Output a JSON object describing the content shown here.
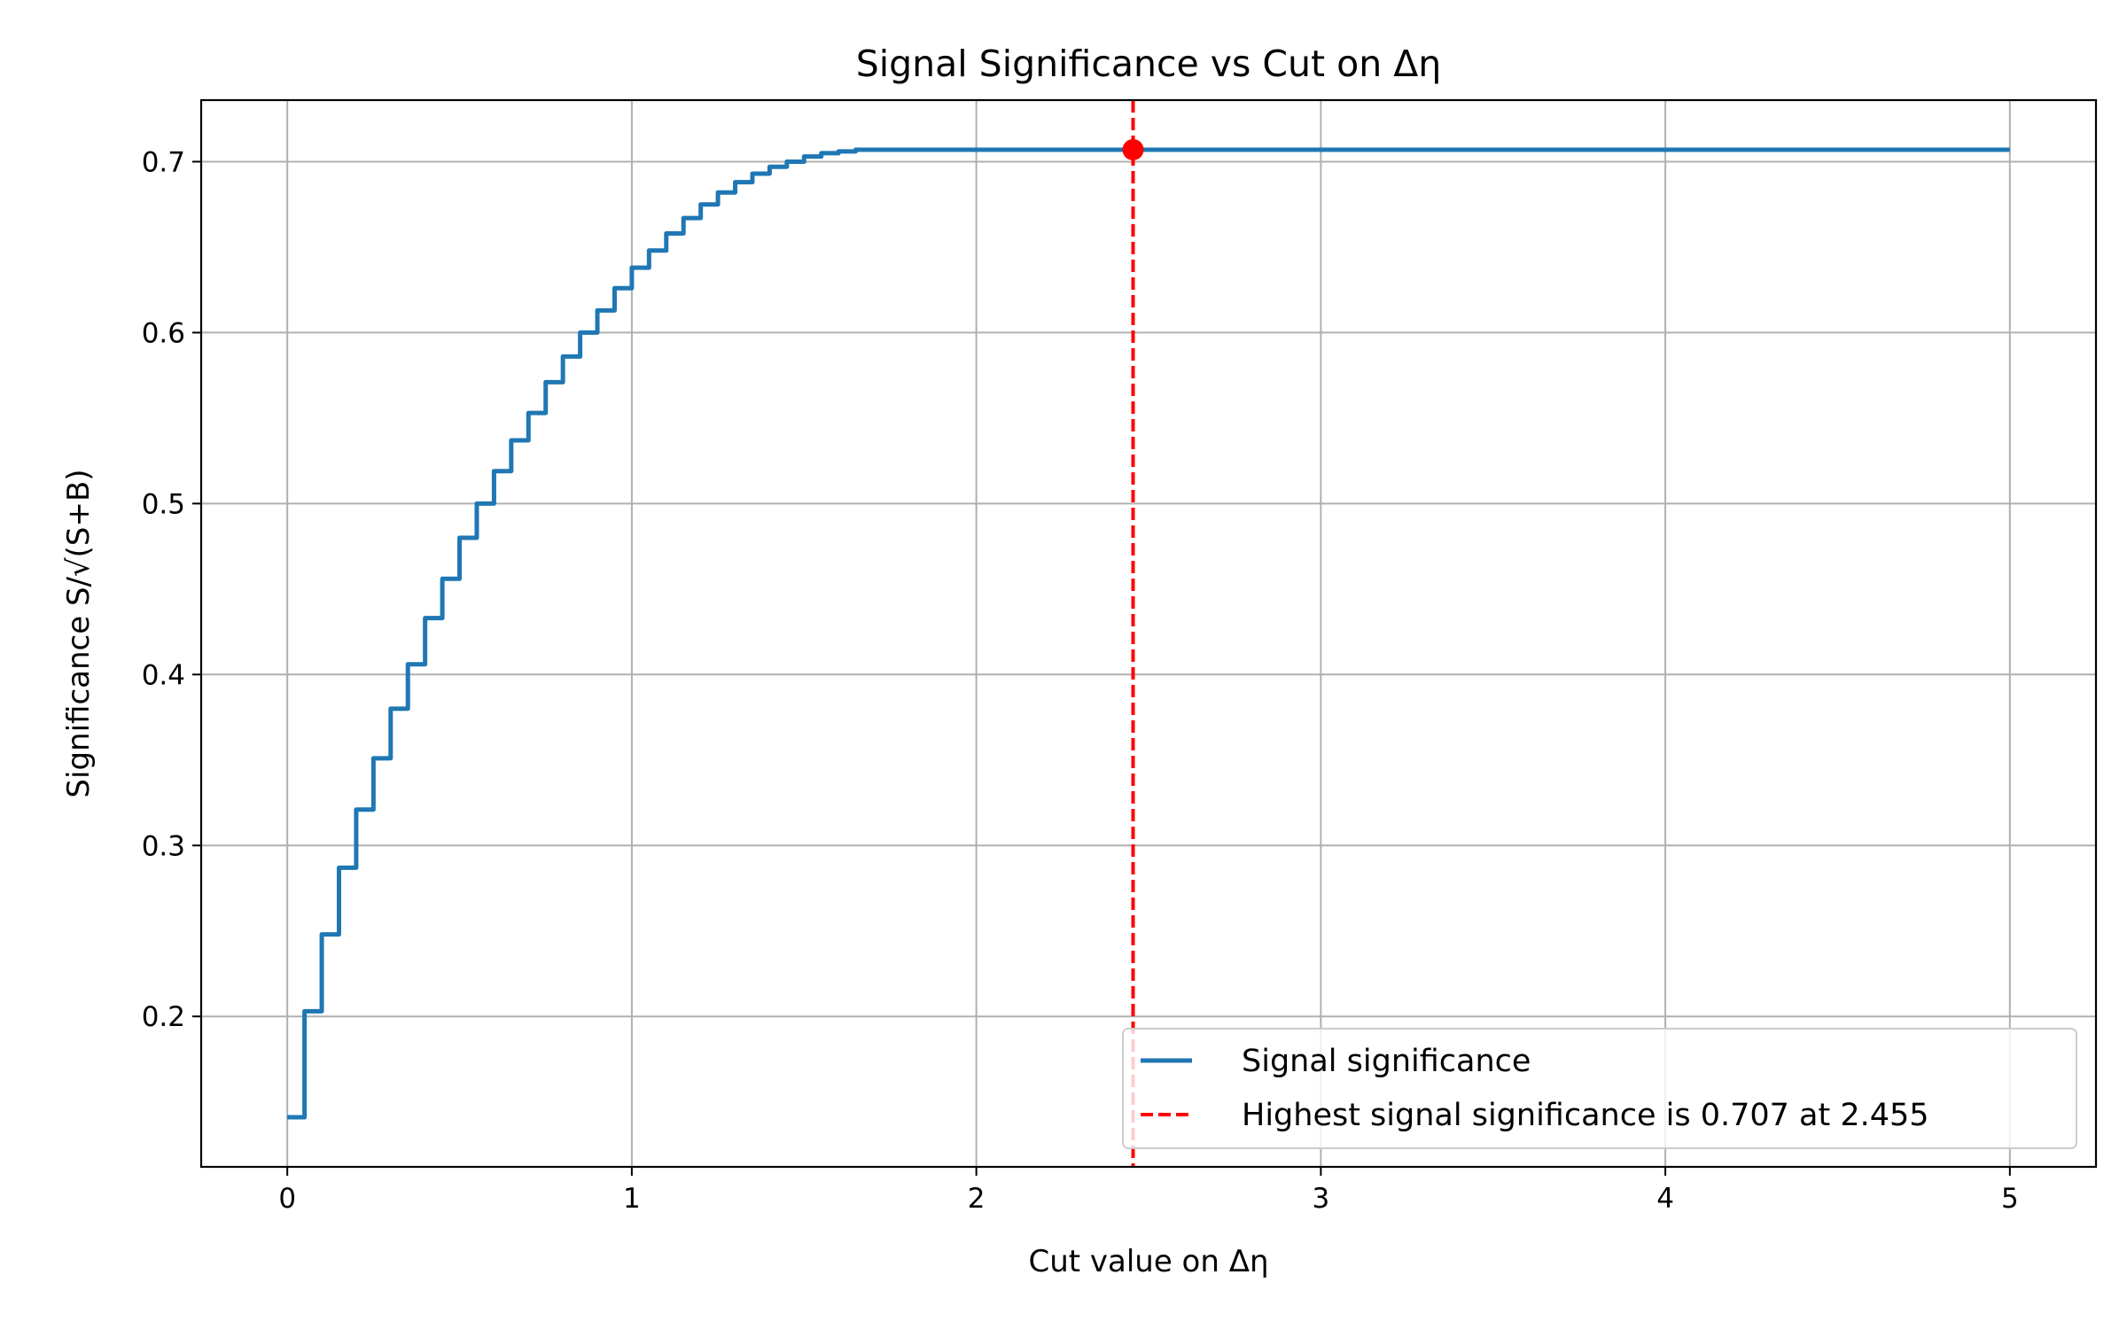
{
  "chart_data": {
    "type": "line",
    "title": "Signal Significance vs Cut on Δη",
    "xlabel": "Cut value on Δη",
    "ylabel": "Significance S/√(S+B)",
    "xlim": [
      -0.25,
      5.25
    ],
    "ylim": [
      0.112,
      0.736
    ],
    "x_ticks": [
      0,
      1,
      2,
      3,
      4,
      5
    ],
    "x_tick_labels": [
      "0",
      "1",
      "2",
      "3",
      "4",
      "5"
    ],
    "y_ticks": [
      0.2,
      0.3,
      0.4,
      0.5,
      0.6,
      0.7
    ],
    "y_tick_labels": [
      "0.2",
      "0.3",
      "0.4",
      "0.5",
      "0.6",
      "0.7"
    ],
    "grid": true,
    "legend_position": "lower-right",
    "series": [
      {
        "name": "Signal significance",
        "style": "step",
        "color": "#1f77b4",
        "x": [
          0.0,
          0.05,
          0.1,
          0.15,
          0.2,
          0.25,
          0.3,
          0.35,
          0.4,
          0.45,
          0.5,
          0.55,
          0.6,
          0.65,
          0.7,
          0.75,
          0.8,
          0.85,
          0.9,
          0.95,
          1.0,
          1.05,
          1.1,
          1.15,
          1.2,
          1.25,
          1.3,
          1.35,
          1.4,
          1.45,
          1.5,
          1.55,
          1.6,
          1.65,
          1.7,
          1.8,
          1.9,
          5.0
        ],
        "y": [
          0.141,
          0.203,
          0.248,
          0.287,
          0.321,
          0.351,
          0.38,
          0.406,
          0.433,
          0.456,
          0.48,
          0.5,
          0.519,
          0.537,
          0.553,
          0.571,
          0.586,
          0.6,
          0.613,
          0.626,
          0.638,
          0.648,
          0.658,
          0.667,
          0.675,
          0.682,
          0.688,
          0.693,
          0.697,
          0.7,
          0.703,
          0.705,
          0.706,
          0.707,
          0.707,
          0.707,
          0.707,
          0.707
        ]
      }
    ],
    "marker": {
      "name": "Highest signal significance is 0.707 at 2.455",
      "x": 2.455,
      "y": 0.707,
      "color": "#ff0000",
      "line_style": "dashed"
    }
  }
}
